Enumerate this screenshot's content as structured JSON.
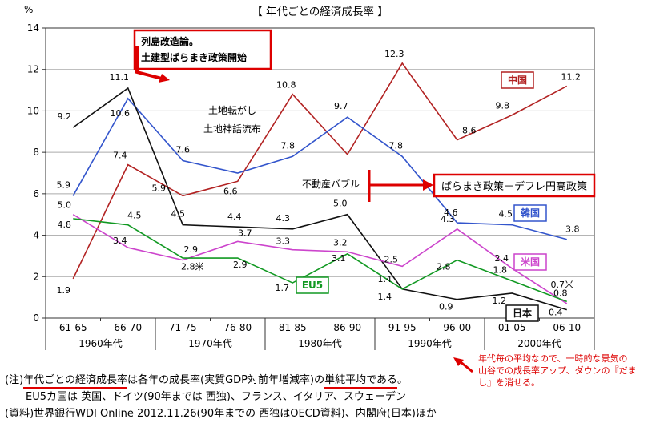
{
  "title": "【 年代ごとの経済成長率 】",
  "chart_data": {
    "type": "line",
    "title": "【 年代ごとの経済成長率 】",
    "y_unit": "%",
    "ylim": [
      0,
      14
    ],
    "y_ticks": [
      0,
      2,
      4,
      6,
      8,
      10,
      12,
      14
    ],
    "grid": true,
    "categories": [
      "61-65",
      "66-70",
      "71-75",
      "76-80",
      "81-85",
      "86-90",
      "91-95",
      "96-00",
      "01-05",
      "06-10"
    ],
    "decade_labels": [
      "1960年代",
      "1970年代",
      "1980年代",
      "1990年代",
      "2000年代"
    ],
    "series": [
      {
        "key": "china",
        "name": "中国",
        "color": "#b22222",
        "values": [
          1.9,
          7.4,
          5.9,
          6.6,
          10.8,
          7.9,
          12.3,
          8.6,
          9.8,
          11.2
        ],
        "labels": [
          "1.9",
          "7.4",
          "5.9",
          "6.6",
          "10.8",
          "",
          "12.3",
          "8.6",
          "9.8",
          "11.2"
        ]
      },
      {
        "key": "korea",
        "name": "韓国",
        "color": "#3355cc",
        "values": [
          5.9,
          10.6,
          7.6,
          7.0,
          7.8,
          9.7,
          7.8,
          4.6,
          4.5,
          3.8
        ],
        "labels": [
          "5.9",
          "10.6",
          "7.6",
          "",
          "7.8",
          "9.7",
          "7.8",
          "4.6",
          "4.5",
          "3.8"
        ]
      },
      {
        "key": "japan",
        "name": "日本",
        "color": "#111111",
        "values": [
          9.2,
          11.1,
          4.5,
          4.4,
          4.3,
          5.0,
          1.4,
          0.9,
          1.2,
          0.4
        ],
        "labels": [
          "9.2",
          "11.1",
          "4.5",
          "4.4",
          "4.3",
          "5.0",
          "1.4",
          "0.9",
          "1.2",
          "0.4"
        ]
      },
      {
        "key": "us",
        "name": "米国",
        "color": "#cc44cc",
        "values": [
          5.0,
          3.4,
          2.8,
          3.7,
          3.3,
          3.2,
          2.5,
          4.3,
          2.4,
          0.7
        ],
        "labels": [
          "5.0",
          "3.4",
          "2.8米",
          "3.7",
          "3.3",
          "3.2",
          "2.5",
          "4.3",
          "2.4",
          "0.7米"
        ]
      },
      {
        "key": "eu5",
        "name": "EU5",
        "color": "#119922",
        "values": [
          4.8,
          4.5,
          2.9,
          2.9,
          1.7,
          3.1,
          1.4,
          2.8,
          1.8,
          0.8
        ],
        "labels": [
          "4.8",
          "4.5",
          "2.9",
          "2.9",
          "1.7",
          "3.1",
          "1.4",
          "2.8",
          "1.8",
          "0.8"
        ]
      }
    ],
    "legend_position": "inline-boxes-near-lines"
  },
  "annotations": {
    "box1_line1": "列島改造論。",
    "box1_line2": "土建型ばらまき政策開始",
    "text1": "土地転がし",
    "text2": "土地神話流布",
    "text3": "不動産バブル",
    "box2": "ばらまき政策＋デフレ円高政策",
    "accent_color": "#dd0000"
  },
  "notes": {
    "note1": {
      "prefix": "(注)",
      "underlined1": "年代ごとの経済成長率",
      "middle": "は各年の成長率(実質GDP対前年増減率)の",
      "underlined2": "単純平均である",
      "suffix": "。"
    },
    "note2": "EU5カ国は 英国、ドイツ(90年までは 西独)、フランス、イタリア、スウェーデン",
    "note3": "(資料)世界銀行WDI Online 2012.11.26(90年までの 西独はOECD資料)、内閣府(日本)ほか"
  },
  "red_note": {
    "line1": "年代毎の平均なので、一時的な景気の",
    "line2": "山谷での成長率アップ、ダウンの『だま",
    "line3": "し』を消せる。"
  }
}
